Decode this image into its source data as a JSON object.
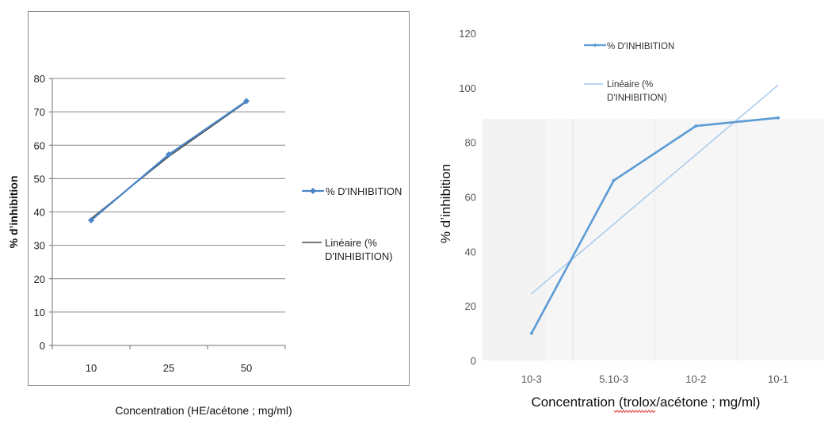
{
  "chart_data": [
    {
      "type": "line",
      "xlabel": "Concentration (HE/acétone ; mg/ml)",
      "ylabel": "% d’inhibition",
      "categories": [
        "10",
        "25",
        "50"
      ],
      "ylim": [
        0,
        80
      ],
      "yticks": [
        "0",
        "10",
        "20",
        "30",
        "40",
        "50",
        "60",
        "70",
        "80"
      ],
      "series": [
        {
          "name": "% D'INHIBITION",
          "values": [
            37.5,
            57.2,
            73.2
          ],
          "color": "#4a86c8",
          "marker": "diamond"
        }
      ],
      "trendline": {
        "name": "Linéaire (% D'INHIBITION)",
        "values": [
          38.0,
          56.6,
          73.0
        ],
        "color": "#4a4a4a"
      },
      "grid": true,
      "legend": "right"
    },
    {
      "type": "line",
      "xlabel": "Concentration (trolox/acétone ; mg/ml)",
      "ylabel": "% d’inhibition",
      "categories": [
        "10-3",
        "5.10-3",
        "10-2",
        "10-1"
      ],
      "ylim": [
        0,
        120
      ],
      "yticks": [
        "0",
        "20",
        "40",
        "60",
        "80",
        "100",
        "120"
      ],
      "series": [
        {
          "name": "% D'INHIBITION",
          "values": [
            10,
            66,
            86,
            89
          ],
          "color": "#5b9bd5",
          "marker": "diamond"
        }
      ],
      "trendline": {
        "name": "Linéaire (% D'INHIBITION)",
        "values": [
          24.5,
          50,
          75.5,
          101
        ],
        "color": "#a9c9ea"
      },
      "grid": true,
      "legend": "top"
    }
  ]
}
